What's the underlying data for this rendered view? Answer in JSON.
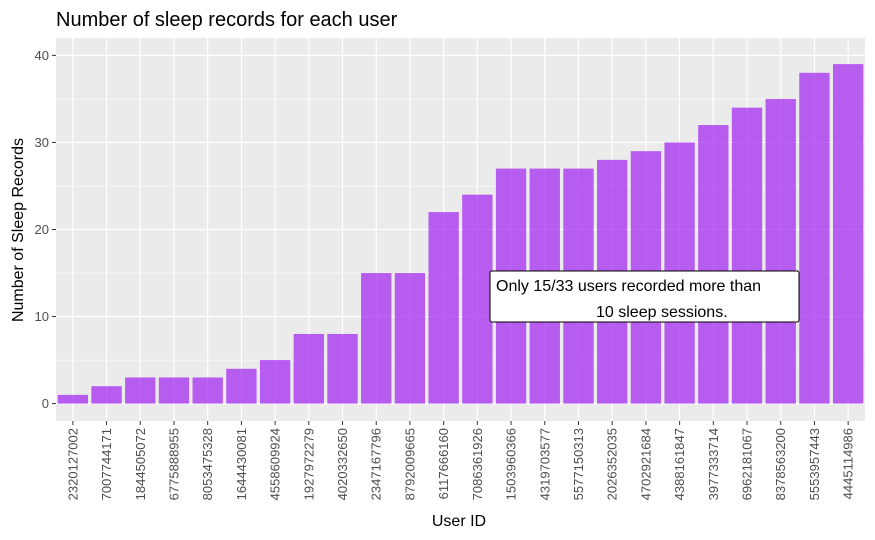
{
  "chart_data": {
    "type": "bar",
    "title": "Number of sleep records for each user",
    "xlabel": "User ID",
    "ylabel": "Number of Sleep Records",
    "ylim": [
      -2,
      42
    ],
    "yticks": [
      0,
      10,
      20,
      30,
      40
    ],
    "categories": [
      "2320127002",
      "7007744171",
      "1844505072",
      "6775888955",
      "8053475328",
      "1644430081",
      "4558609924",
      "1927972279",
      "4020332650",
      "2347167796",
      "8792009665",
      "6117666160",
      "7086361926",
      "1503960366",
      "4319703577",
      "5577150313",
      "2026352035",
      "4702921684",
      "4388161847",
      "3977333714",
      "6962181067",
      "8378563200",
      "5553957443",
      "4445114986"
    ],
    "values": [
      1,
      2,
      3,
      3,
      3,
      4,
      5,
      8,
      8,
      15,
      15,
      22,
      24,
      27,
      27,
      27,
      28,
      29,
      30,
      32,
      34,
      35,
      38,
      39
    ],
    "bar_color": "#a020f0",
    "panel_background": "#ebebeb",
    "grid": true,
    "annotation": {
      "line1": "Only 15/33 users recorded more than",
      "line2": "10 sleep sessions."
    }
  }
}
